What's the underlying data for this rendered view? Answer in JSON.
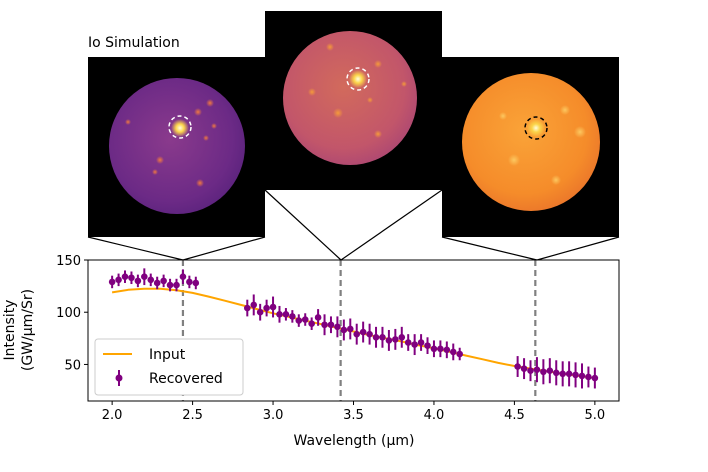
{
  "figure": {
    "title": "Io Simulation"
  },
  "colors": {
    "input": "#ffa500",
    "recovered": "#800080",
    "marker_line": "#808080"
  },
  "chart_data": {
    "type": "scatter",
    "xlabel": "Wavelength (μm)",
    "ylabel_line1": "Intensity",
    "ylabel_line2": "(GW/μm/Sr)",
    "xlim": [
      1.85,
      5.15
    ],
    "ylim": [
      15,
      150
    ],
    "xticks": [
      2.0,
      2.5,
      3.0,
      3.5,
      4.0,
      4.5,
      5.0
    ],
    "xtick_labels": [
      "2.0",
      "2.5",
      "3.0",
      "3.5",
      "4.0",
      "4.5",
      "5.0"
    ],
    "yticks": [
      50,
      100,
      150
    ],
    "ytick_labels": [
      "50",
      "100",
      "150"
    ],
    "legend": {
      "input": "Input",
      "recovered": "Recovered",
      "position": "lower-left"
    },
    "vertical_markers": [
      2.44,
      3.42,
      4.63
    ],
    "series": [
      {
        "name": "Input",
        "style": "line",
        "x": [
          2.0,
          2.1,
          2.2,
          2.3,
          2.4,
          2.5,
          2.6,
          2.7,
          2.8,
          2.9,
          3.0,
          3.1,
          3.2,
          3.3,
          3.4,
          3.5,
          3.6,
          3.7,
          3.8,
          3.9,
          4.0,
          4.1,
          4.2,
          4.3,
          4.4,
          4.5,
          4.6,
          4.7,
          4.8,
          4.9,
          5.0
        ],
        "y": [
          119,
          121.5,
          122.5,
          122.5,
          121,
          118.5,
          115,
          111,
          107,
          103,
          99,
          95.5,
          92,
          88.5,
          85,
          81.5,
          78,
          75,
          72,
          68.5,
          65.5,
          62,
          58.5,
          55,
          51.5,
          48.5,
          46,
          43.5,
          41,
          39,
          37
        ]
      },
      {
        "name": "Recovered",
        "style": "errorbar",
        "x": [
          2.0,
          2.04,
          2.08,
          2.12,
          2.16,
          2.2,
          2.24,
          2.28,
          2.32,
          2.36,
          2.4,
          2.44,
          2.48,
          2.52,
          2.84,
          2.88,
          2.92,
          2.96,
          3.0,
          3.04,
          3.08,
          3.12,
          3.16,
          3.2,
          3.24,
          3.28,
          3.32,
          3.36,
          3.4,
          3.44,
          3.48,
          3.52,
          3.56,
          3.6,
          3.64,
          3.68,
          3.72,
          3.76,
          3.8,
          3.84,
          3.88,
          3.92,
          3.96,
          4.0,
          4.04,
          4.08,
          4.12,
          4.16,
          4.52,
          4.56,
          4.6,
          4.64,
          4.68,
          4.72,
          4.76,
          4.8,
          4.84,
          4.88,
          4.92,
          4.96,
          5.0
        ],
        "y": [
          129,
          131,
          134,
          133,
          130,
          134,
          131,
          128,
          130,
          126,
          126,
          134,
          129,
          128,
          104,
          107,
          100,
          104,
          105,
          98,
          98,
          96,
          92,
          93,
          89,
          95,
          88,
          88,
          86,
          83,
          84,
          79,
          81,
          79,
          76,
          76,
          73,
          74,
          76,
          71,
          69,
          71,
          68,
          65,
          65,
          64,
          62,
          60,
          48,
          46,
          44,
          45,
          43,
          44,
          42,
          41,
          41,
          40,
          39,
          38,
          37
        ],
        "err": [
          6,
          6,
          6,
          6,
          6,
          8,
          6,
          6,
          6,
          6,
          6,
          7,
          6,
          6,
          8,
          10,
          8,
          8,
          10,
          8,
          6,
          6,
          6,
          6,
          6,
          8,
          10,
          8,
          10,
          10,
          10,
          10,
          10,
          10,
          10,
          10,
          10,
          10,
          10,
          8,
          10,
          8,
          8,
          8,
          8,
          8,
          8,
          6,
          10,
          10,
          10,
          12,
          12,
          12,
          12,
          12,
          12,
          12,
          12,
          10,
          10
        ]
      }
    ]
  },
  "images": [
    {
      "name": "io-frame-2p4",
      "wavelength": 2.44,
      "tone": "dim-purple",
      "circle_color": "#ffffff"
    },
    {
      "name": "io-frame-3p4",
      "wavelength": 3.42,
      "tone": "mid-orange",
      "circle_color": "#ffffff"
    },
    {
      "name": "io-frame-4p6",
      "wavelength": 4.63,
      "tone": "bright-orange",
      "circle_color": "#000000"
    }
  ]
}
